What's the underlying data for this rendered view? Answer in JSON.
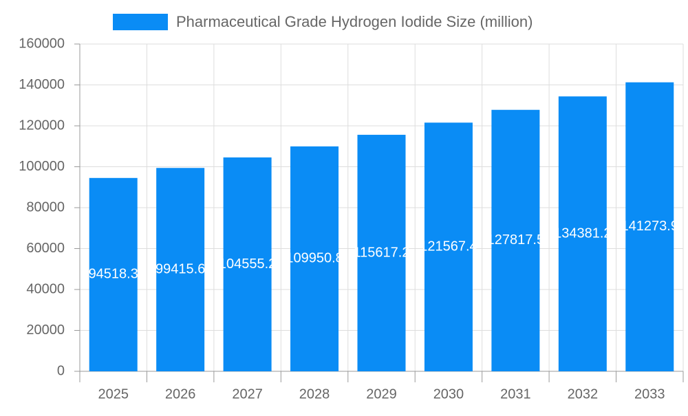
{
  "chart_data": {
    "type": "bar",
    "series": [
      {
        "name": "Pharmaceutical Grade Hydrogen Iodide Size (million)",
        "color": "#0a8cf5",
        "values": [
          94518.3,
          99415.6,
          104555.2,
          109950.8,
          115617.2,
          121567.4,
          127817.5,
          134381.2,
          141273.9
        ]
      }
    ],
    "categories": [
      "2025",
      "2026",
      "2027",
      "2028",
      "2029",
      "2030",
      "2031",
      "2032",
      "2033"
    ],
    "ylim": [
      0,
      160000
    ],
    "yticks": [
      0,
      20000,
      40000,
      60000,
      80000,
      100000,
      120000,
      140000,
      160000
    ],
    "grid": true,
    "legend": "top"
  }
}
